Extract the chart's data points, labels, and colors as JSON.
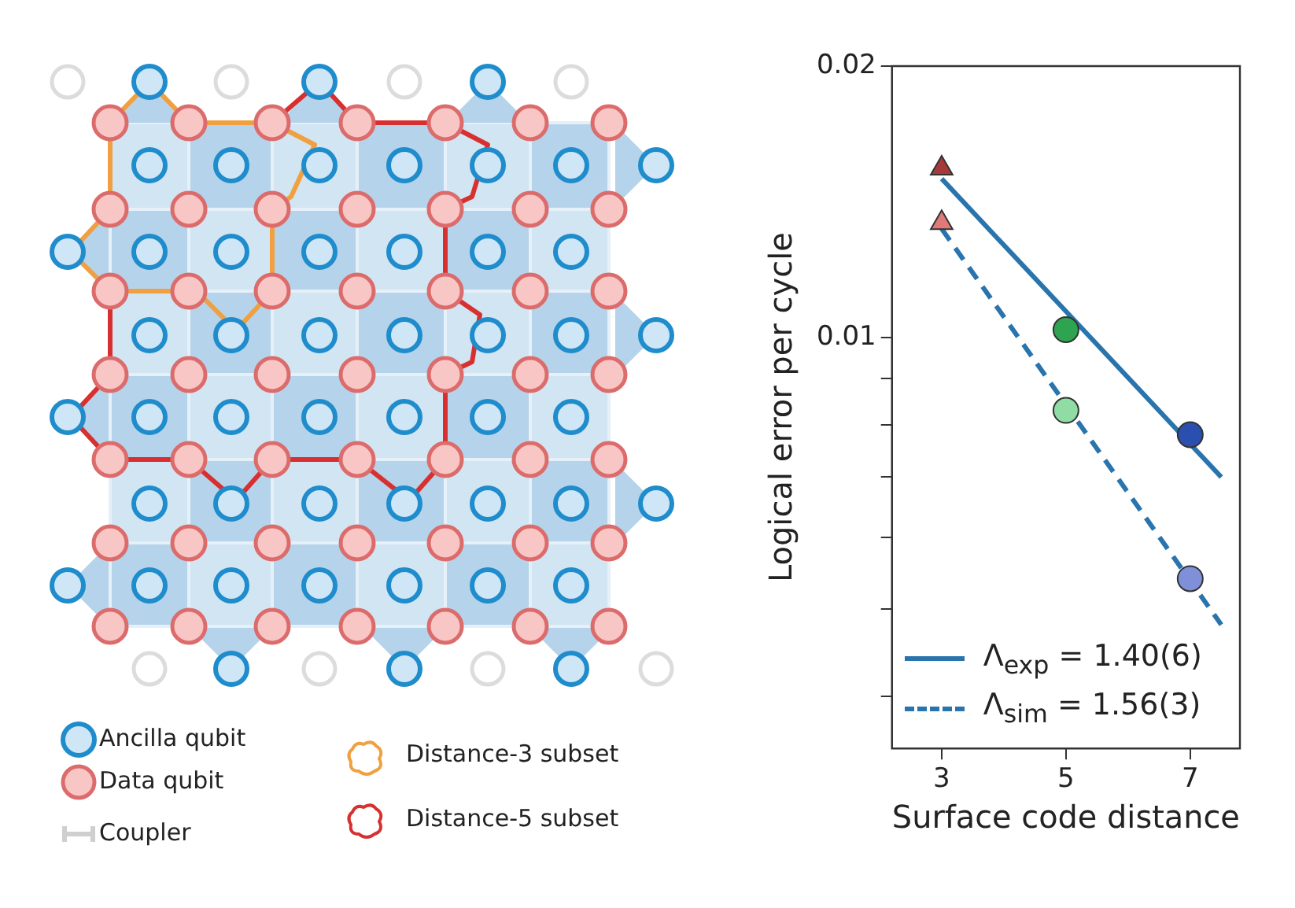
{
  "chart_data": [
    {
      "type": "other",
      "annotations": [
        "Ancilla qubit",
        "Data qubit",
        "Coupler",
        "Distance-3 subset",
        "Distance-5 subset"
      ]
    },
    {
      "type": "line",
      "xlabel": "Surface code distance",
      "ylabel": "Logical error per cycle",
      "log": "y",
      "grid": false,
      "legend": "bottom left",
      "xlim": [
        2.2,
        7.8
      ],
      "xticks": [
        3,
        5,
        7
      ],
      "ylim": [
        0.0035,
        0.02
      ],
      "yticks": [
        {
          "value": 0.004,
          "label": null
        },
        {
          "value": 0.005,
          "label": null
        },
        {
          "value": 0.006,
          "label": null
        },
        {
          "value": 0.007,
          "label": null
        },
        {
          "value": 0.008,
          "label": null
        },
        {
          "value": 0.009,
          "label": null
        },
        0.01,
        0.02
      ],
      "series": [
        {
          "name": "Λ$_{exp}$ = 1.40(6)",
          "type": "line",
          "color": "#2a74ad",
          "x": [
            3,
            7.5
          ],
          "values": [
            0.015,
            0.007
          ],
          "marker": "none",
          "line_style": "solid"
        },
        {
          "name": "Λ$_{sim}$ = 1.56(3)",
          "type": "line",
          "color": "#2a74ad",
          "x": [
            3,
            7.5
          ],
          "values": [
            0.0132,
            0.0048
          ],
          "marker": "none",
          "line_style": "dashed"
        },
        {
          "type": "scatter",
          "color": "#a63a3a",
          "x": [
            3
          ],
          "values": [
            0.0154
          ],
          "marker": "triangle"
        },
        {
          "type": "scatter",
          "color": "#2ea450",
          "x": [
            5
          ],
          "values": [
            0.0102
          ],
          "marker": "circle"
        },
        {
          "type": "scatter",
          "color": "#2a4fae",
          "x": [
            7
          ],
          "values": [
            0.0078
          ],
          "marker": "circle"
        },
        {
          "type": "scatter",
          "color": "#e07a7a",
          "x": [
            3
          ],
          "values": [
            0.0134
          ],
          "marker": "triangle"
        },
        {
          "type": "scatter",
          "color": "#8fdca5",
          "x": [
            5
          ],
          "values": [
            0.0083
          ],
          "marker": "circle"
        },
        {
          "type": "scatter",
          "color": "#8090d8",
          "x": [
            7
          ],
          "values": [
            0.0054
          ],
          "marker": "circle"
        }
      ]
    }
  ]
}
